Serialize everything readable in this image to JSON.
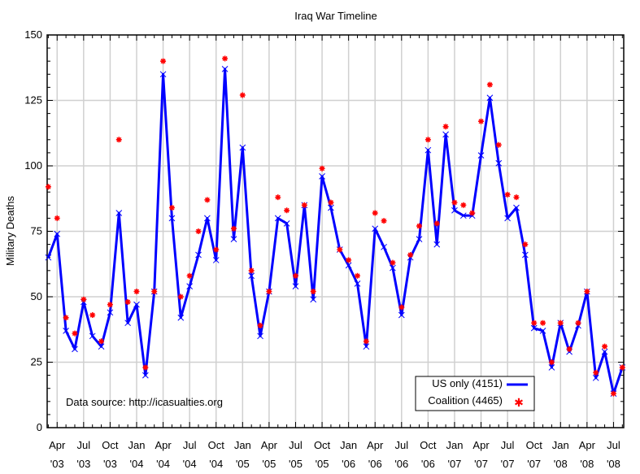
{
  "chart_data": {
    "type": "line",
    "title": "Iraq War Timeline",
    "xlabel": "",
    "ylabel": "Military Deaths",
    "ylim": [
      0,
      150
    ],
    "yticks": [
      0,
      25,
      50,
      75,
      100,
      125,
      150
    ],
    "start_month": "2003-03",
    "xtick_labels": [
      [
        "Apr",
        "'03"
      ],
      [
        "Jul",
        "'03"
      ],
      [
        "Oct",
        "'03"
      ],
      [
        "Jan",
        "'04"
      ],
      [
        "Apr",
        "'04"
      ],
      [
        "Jul",
        "'04"
      ],
      [
        "Oct",
        "'04"
      ],
      [
        "Jan",
        "'05"
      ],
      [
        "Apr",
        "'05"
      ],
      [
        "Jul",
        "'05"
      ],
      [
        "Oct",
        "'05"
      ],
      [
        "Jan",
        "'06"
      ],
      [
        "Apr",
        "'06"
      ],
      [
        "Jul",
        "'06"
      ],
      [
        "Oct",
        "'06"
      ],
      [
        "Jan",
        "'07"
      ],
      [
        "Apr",
        "'07"
      ],
      [
        "Jul",
        "'07"
      ],
      [
        "Oct",
        "'07"
      ],
      [
        "Jan",
        "'08"
      ],
      [
        "Apr",
        "'08"
      ],
      [
        "Jul",
        "'08"
      ]
    ],
    "grid": true,
    "legend_position": "bottom-right",
    "annotation": "Data source: http://icasualties.org",
    "series": [
      {
        "name": "US only (4151)",
        "color": "#0000ff",
        "style": "line+x",
        "values": [
          65,
          74,
          37,
          30,
          48,
          35,
          31,
          44,
          82,
          40,
          47,
          20,
          52,
          135,
          80,
          42,
          54,
          66,
          80,
          64,
          137,
          72,
          107,
          58,
          35,
          52,
          80,
          78,
          54,
          85,
          49,
          96,
          84,
          68,
          62,
          55,
          31,
          76,
          69,
          61,
          43,
          65,
          72,
          106,
          70,
          112,
          83,
          81,
          81,
          104,
          126,
          101,
          80,
          84,
          66,
          38,
          37,
          23,
          40,
          29,
          39,
          52,
          19,
          29,
          13,
          23
        ]
      },
      {
        "name": "Coalition (4465)",
        "color": "#ff0000",
        "style": "points",
        "values": [
          92,
          80,
          42,
          36,
          49,
          43,
          33,
          47,
          110,
          48,
          52,
          23,
          52,
          140,
          84,
          50,
          58,
          75,
          87,
          68,
          141,
          76,
          127,
          60,
          39,
          52,
          88,
          83,
          58,
          85,
          52,
          99,
          86,
          68,
          64,
          58,
          33,
          82,
          79,
          63,
          46,
          66,
          77,
          110,
          78,
          115,
          86,
          85,
          82,
          117,
          131,
          108,
          89,
          88,
          70,
          40,
          40,
          25,
          40,
          30,
          40,
          52,
          21,
          31,
          13,
          23
        ]
      }
    ]
  }
}
